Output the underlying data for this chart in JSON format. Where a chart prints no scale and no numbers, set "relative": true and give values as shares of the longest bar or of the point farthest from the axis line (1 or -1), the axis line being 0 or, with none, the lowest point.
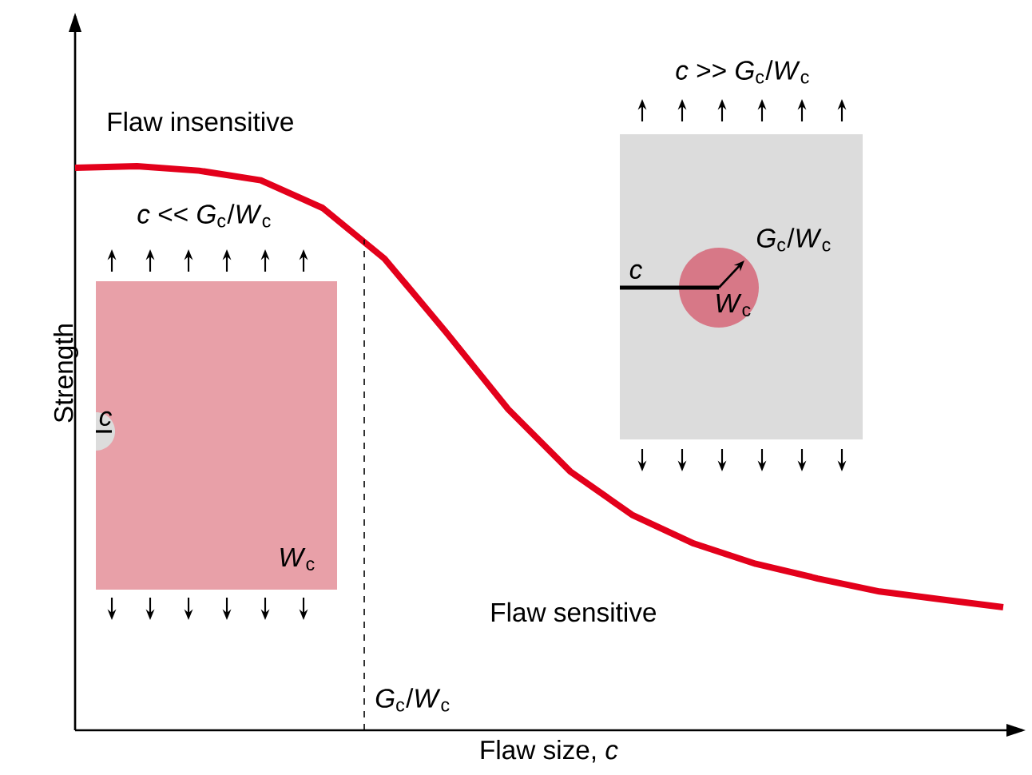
{
  "chart_data": {
    "type": "line",
    "relative": true,
    "xlabel": "Flaw size, *c*",
    "ylabel": "Strength",
    "categories": [
      null,
      null,
      null,
      null,
      null,
      null,
      null,
      null,
      null,
      null,
      null,
      null,
      null,
      null,
      null,
      null
    ],
    "series": [
      {
        "color": "#e3001b",
        "values": [
          0.997,
          1,
          0.992,
          0.975,
          0.926,
          0.836,
          0.705,
          0.569,
          0.459,
          0.382,
          0.331,
          0.295,
          0.269,
          0.246,
          0.232,
          0.218
        ]
      }
    ],
    "annotations": [
      "Flaw insensitive",
      "Flaw sensitive",
      "*c* << *G*$_{c}$/*W*$_{c}$",
      "*c*",
      "*W*$_{c}$",
      "*c* >> *G*$_{c}$/*W*$_{c}$",
      "*c*",
      "*G*$_{c}$/*W*$_{c}$",
      "*W*$_{c}$",
      "*G*$_{c}$/*W*$_{c}$"
    ],
    "marker": "none",
    "line_style": "solid"
  }
}
